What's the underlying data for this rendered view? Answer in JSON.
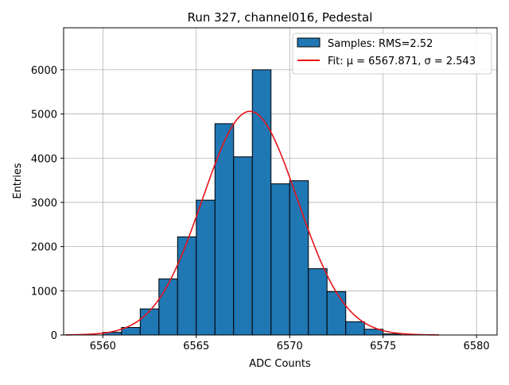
{
  "chart_data": {
    "type": "bar",
    "title": "Run 327, channel016, Pedestal",
    "xlabel": "ADC Counts",
    "ylabel": "Entries",
    "xlim": [
      6557.9,
      6581.1
    ],
    "ylim": [
      0,
      6950
    ],
    "xticks": [
      6560,
      6565,
      6570,
      6575,
      6580
    ],
    "yticks": [
      0,
      1000,
      2000,
      3000,
      4000,
      5000,
      6000
    ],
    "grid": true,
    "legend_position": "top-right",
    "bin_edges": [
      6558,
      6559,
      6560,
      6561,
      6562,
      6563,
      6564,
      6565,
      6566,
      6567,
      6568,
      6569,
      6570,
      6571,
      6572,
      6573,
      6574,
      6575,
      6576,
      6577,
      6578,
      6579,
      6580
    ],
    "bin_counts": [
      0,
      0,
      60,
      170,
      590,
      1270,
      2220,
      3050,
      4780,
      4030,
      6000,
      3420,
      3490,
      1500,
      980,
      300,
      130,
      25,
      0,
      0,
      0,
      0
    ],
    "fit": {
      "mu": 6567.871,
      "sigma": 2.543,
      "amplitude": 5060,
      "x_range": [
        6558,
        6578
      ]
    },
    "series": [
      {
        "name": "Samples: RMS=2.52",
        "kind": "histogram",
        "color": "#1f77b4",
        "edgecolor": "#000000"
      },
      {
        "name": "Fit: μ = 6567.871, σ = 2.543",
        "kind": "line",
        "color": "#e8131a"
      }
    ]
  }
}
